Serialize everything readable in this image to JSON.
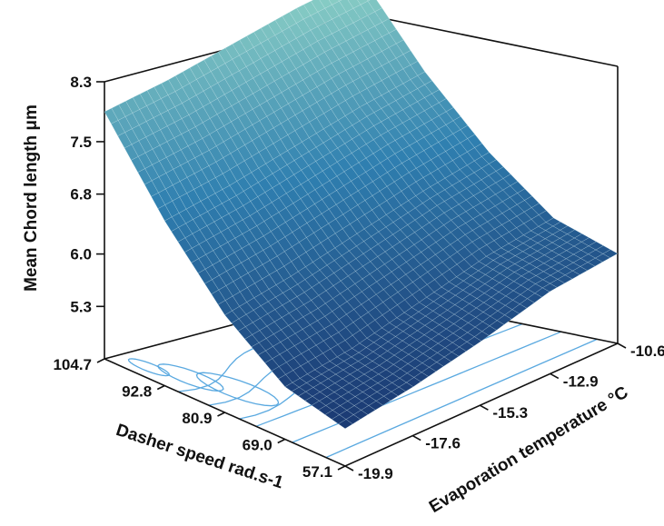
{
  "chart_data": {
    "type": "surface",
    "zlabel": "Mean Chord length μm",
    "xlabel": "Evaporation temperature °C",
    "ylabel": "Dasher speed rad.s-1",
    "x_ticks": [
      "-19.9",
      "-17.6",
      "-15.3",
      "-12.9",
      "-10.6"
    ],
    "y_ticks": [
      "104.7",
      "92.8",
      "80.9",
      "69.0",
      "57.1"
    ],
    "z_ticks": [
      "5.3",
      "6.0",
      "6.8",
      "7.5",
      "8.3"
    ],
    "xlim": [
      -19.9,
      -10.6
    ],
    "ylim": [
      57.1,
      104.7
    ],
    "zlim": [
      4.6,
      8.3
    ],
    "surface": {
      "x": [
        -19.9,
        -17.6,
        -15.3,
        -12.9,
        -10.6
      ],
      "y": [
        57.1,
        69.0,
        80.9,
        92.8,
        104.7
      ],
      "z": [
        [
          5.1,
          5.25,
          5.45,
          5.7,
          5.8
        ],
        [
          5.3,
          5.45,
          5.7,
          5.95,
          6.1
        ],
        [
          5.9,
          6.1,
          6.35,
          6.6,
          6.8
        ],
        [
          6.8,
          7.0,
          7.25,
          7.5,
          7.7
        ],
        [
          7.9,
          8.1,
          8.35,
          8.6,
          8.8
        ]
      ]
    },
    "contours": true,
    "grid": false,
    "colors": {
      "low": "#1b3a73",
      "mid": "#2f7fb0",
      "high": "#8fd3c6",
      "contour": "#5aa9e0"
    }
  }
}
